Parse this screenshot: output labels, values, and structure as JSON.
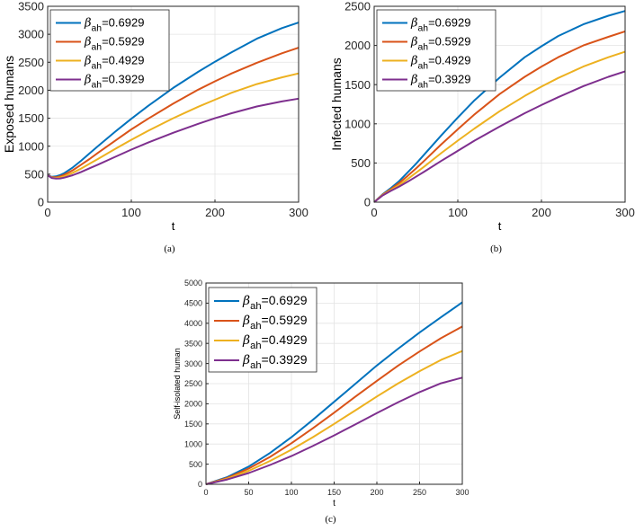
{
  "panels": [
    {
      "caption": "(a)",
      "chart_data": {
        "type": "line",
        "xlabel": "t",
        "ylabel": "Exposed humans",
        "xlim": [
          0,
          300
        ],
        "ylim": [
          0,
          3500
        ],
        "xticks": [
          0,
          100,
          200,
          300
        ],
        "yticks": [
          0,
          500,
          1000,
          1500,
          2000,
          2500,
          3000,
          3500
        ],
        "grid": true,
        "legend_position": "top-left",
        "x": [
          0,
          5,
          10,
          15,
          20,
          30,
          40,
          50,
          60,
          80,
          100,
          120,
          150,
          180,
          200,
          220,
          250,
          280,
          300
        ],
        "series": [
          {
            "name": "0.6929",
            "color": "#0072BD",
            "values": [
              480,
              452,
              460,
              485,
              520,
              620,
              740,
              870,
              1000,
              1250,
              1490,
              1720,
              2040,
              2330,
              2510,
              2680,
              2920,
              3110,
              3210
            ]
          },
          {
            "name": "0.5929",
            "color": "#D95319",
            "values": [
              480,
              445,
              445,
              462,
              490,
              570,
              670,
              770,
              880,
              1090,
              1300,
              1490,
              1760,
              2010,
              2160,
              2300,
              2490,
              2660,
              2760
            ]
          },
          {
            "name": "0.4929",
            "color": "#EDB120",
            "values": [
              480,
              440,
              432,
              442,
              462,
              525,
              600,
              685,
              770,
              945,
              1115,
              1275,
              1500,
              1705,
              1830,
              1955,
              2110,
              2230,
              2300
            ]
          },
          {
            "name": "0.3929",
            "color": "#7E2F8E",
            "values": [
              480,
              432,
              420,
              424,
              438,
              482,
              540,
              605,
              670,
              805,
              940,
              1065,
              1240,
              1400,
              1500,
              1590,
              1710,
              1800,
              1850
            ]
          }
        ]
      }
    },
    {
      "caption": "(b)",
      "chart_data": {
        "type": "line",
        "xlabel": "t",
        "ylabel": "Infected humans",
        "xlim": [
          0,
          300
        ],
        "ylim": [
          0,
          2500
        ],
        "xticks": [
          0,
          100,
          200,
          300
        ],
        "yticks": [
          0,
          500,
          1000,
          1500,
          2000,
          2500
        ],
        "grid": true,
        "legend_position": "top-left",
        "x": [
          0,
          10,
          20,
          30,
          40,
          50,
          60,
          80,
          100,
          120,
          150,
          180,
          200,
          220,
          250,
          280,
          300
        ],
        "series": [
          {
            "name": "0.6929",
            "color": "#0072BD",
            "values": [
              0,
              100,
              180,
              270,
              380,
              490,
              610,
              850,
              1080,
              1300,
              1590,
              1850,
              1990,
              2120,
              2270,
              2380,
              2440
            ]
          },
          {
            "name": "0.5929",
            "color": "#D95319",
            "values": [
              0,
              95,
              165,
              245,
              335,
              430,
              530,
              735,
              930,
              1120,
              1380,
              1600,
              1730,
              1850,
              2000,
              2110,
              2180
            ]
          },
          {
            "name": "0.4929",
            "color": "#EDB120",
            "values": [
              0,
              90,
              155,
              220,
              295,
              375,
              455,
              625,
              785,
              940,
              1160,
              1355,
              1475,
              1585,
              1730,
              1850,
              1920
            ]
          },
          {
            "name": "0.3929",
            "color": "#7E2F8E",
            "values": [
              0,
              85,
              145,
              200,
              260,
              325,
              390,
              525,
              655,
              785,
              965,
              1135,
              1240,
              1340,
              1480,
              1600,
              1670
            ]
          }
        ]
      }
    },
    {
      "caption": "(c)",
      "chart_data": {
        "type": "line",
        "xlabel": "t",
        "ylabel": "Self-isolated human",
        "xlim": [
          0,
          300
        ],
        "ylim": [
          0,
          5000
        ],
        "xticks": [
          0,
          50,
          100,
          150,
          200,
          250,
          300
        ],
        "yticks": [
          0,
          500,
          1000,
          1500,
          2000,
          2500,
          3000,
          3500,
          4000,
          4500,
          5000
        ],
        "grid": true,
        "legend_position": "top-left",
        "x": [
          0,
          25,
          50,
          75,
          100,
          125,
          150,
          175,
          200,
          225,
          250,
          275,
          300
        ],
        "series": [
          {
            "name": "0.6929",
            "color": "#0072BD",
            "values": [
              0,
              180,
              440,
              780,
              1170,
              1600,
              2050,
              2500,
              2950,
              3370,
              3770,
              4150,
              4520
            ]
          },
          {
            "name": "0.5929",
            "color": "#D95319",
            "values": [
              0,
              160,
              390,
              680,
              1020,
              1390,
              1780,
              2180,
              2570,
              2950,
              3300,
              3630,
              3920
            ]
          },
          {
            "name": "0.4929",
            "color": "#EDB120",
            "values": [
              0,
              140,
              335,
              580,
              860,
              1170,
              1500,
              1840,
              2180,
              2510,
              2810,
              3090,
              3310
            ]
          },
          {
            "name": "0.3929",
            "color": "#7E2F8E",
            "values": [
              0,
              120,
              280,
              480,
              700,
              950,
              1215,
              1490,
              1770,
              2040,
              2290,
              2510,
              2650
            ]
          }
        ]
      }
    }
  ],
  "legend_symbol": "β",
  "legend_sub": "ah",
  "legend_eq": "="
}
